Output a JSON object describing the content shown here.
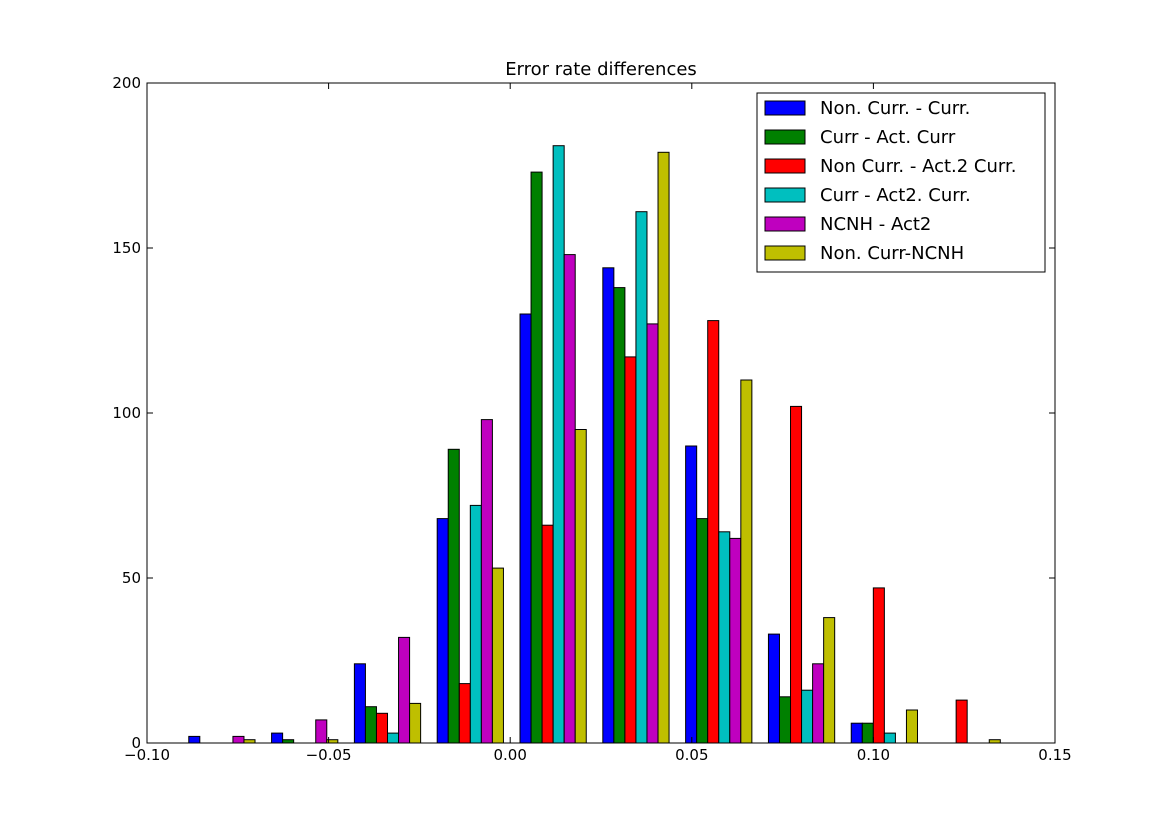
{
  "chart_data": {
    "type": "bar",
    "title": "Error rate differences",
    "xlabel": "",
    "ylabel": "",
    "xlim": [
      -0.1,
      0.15
    ],
    "ylim": [
      0,
      200
    ],
    "xticks": [
      "−0.10",
      "−0.05",
      "0.00",
      "0.05",
      "0.10",
      "0.15"
    ],
    "yticks": [
      "0",
      "50",
      "100",
      "150",
      "200"
    ],
    "bin_edges": [
      -0.0885,
      -0.0657,
      -0.0429,
      -0.0201,
      0.0027,
      0.0255,
      0.0483,
      0.0711,
      0.0939,
      0.1167,
      0.1395
    ],
    "legend_position": "upper-right",
    "series": [
      {
        "name": "Non. Curr. - Curr.",
        "color": "#0000ff",
        "values": [
          2,
          3,
          24,
          68,
          130,
          144,
          90,
          33,
          6,
          0
        ]
      },
      {
        "name": "Curr - Act. Curr",
        "color": "#008000",
        "values": [
          0,
          1,
          11,
          89,
          173,
          138,
          68,
          14,
          6,
          0
        ]
      },
      {
        "name": "Non Curr. - Act.2 Curr.",
        "color": "#ff0000",
        "values": [
          0,
          0,
          9,
          18,
          66,
          117,
          128,
          102,
          47,
          13
        ]
      },
      {
        "name": "Curr - Act2. Curr.",
        "color": "#00bfbf",
        "values": [
          0,
          0,
          3,
          72,
          181,
          161,
          64,
          16,
          3,
          0
        ]
      },
      {
        "name": "NCNH - Act2",
        "color": "#bf00bf",
        "values": [
          2,
          7,
          32,
          98,
          148,
          127,
          62,
          24,
          0,
          0
        ]
      },
      {
        "name": "Non. Curr-NCNH",
        "color": "#bfbf00",
        "values": [
          1,
          1,
          12,
          53,
          95,
          179,
          110,
          38,
          10,
          1
        ]
      }
    ]
  }
}
